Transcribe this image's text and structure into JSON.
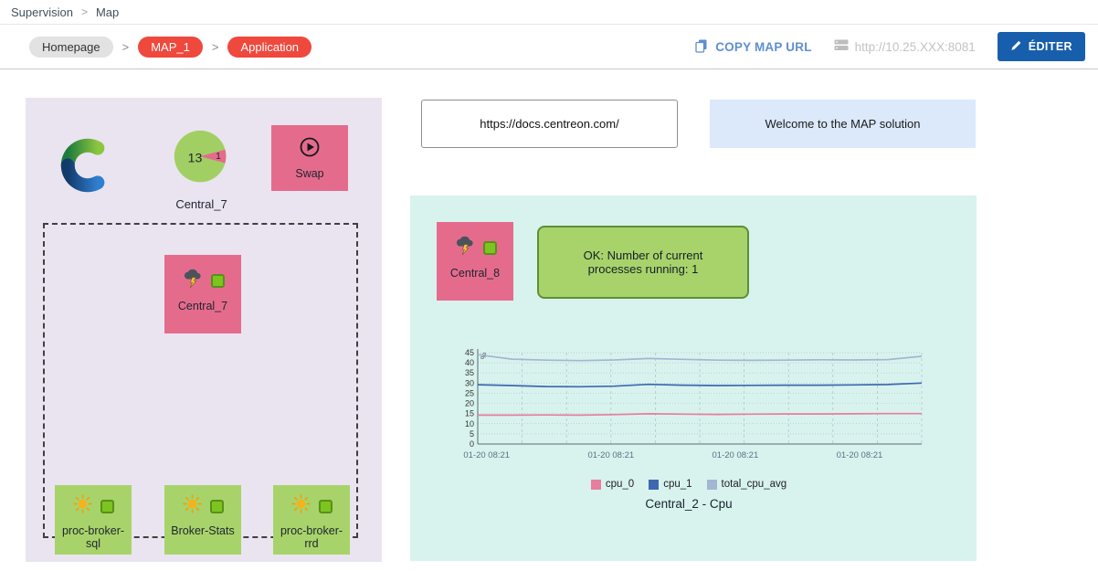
{
  "breadcrumb": {
    "section": "Supervision",
    "page": "Map"
  },
  "toolbar": {
    "homepage": "Homepage",
    "map_name": "MAP_1",
    "view_name": "Application",
    "copy_url_label": "COPY MAP URL",
    "server_url": "http://10.25.XXX:8081",
    "edit_label": "ÉDITER"
  },
  "left_panel": {
    "gauge": {
      "value": "13",
      "slice_value": "1",
      "label": "Central_7"
    },
    "swap": {
      "label": "Swap"
    },
    "host_box": {
      "label": "Central_7"
    },
    "service_boxes": [
      {
        "label": "proc-broker-sql"
      },
      {
        "label": "Broker-Stats"
      },
      {
        "label": "proc-broker-rrd"
      }
    ]
  },
  "info_boxes": {
    "docs_url": "https://docs.centreon.com/",
    "welcome": "Welcome to the MAP solution"
  },
  "right_panel": {
    "host_box": {
      "label": "Central_8"
    },
    "status_box": {
      "text": "OK: Number of current processes running: 1"
    }
  },
  "chart_data": {
    "type": "line",
    "title": "Central_2 - Cpu",
    "ylabel": "%",
    "xlabel": "",
    "ylim": [
      0,
      45
    ],
    "yticks": [
      0,
      5,
      10,
      15,
      20,
      25,
      30,
      35,
      40,
      45
    ],
    "x_tick_labels": [
      "01-20 08:21",
      "01-20 08:21",
      "01-20 08:21",
      "01-20 08:21"
    ],
    "grid": true,
    "legend_position": "bottom",
    "series": [
      {
        "name": "cpu_0",
        "color": "#e87d9d",
        "values": [
          14.2,
          14.2,
          14.3,
          14.2,
          14.5,
          14.9,
          14.7,
          14.6,
          14.7,
          14.8,
          14.8,
          14.9,
          15.0,
          15.0
        ]
      },
      {
        "name": "cpu_1",
        "color": "#3f67b1",
        "values": [
          29.2,
          28.8,
          28.3,
          28.2,
          28.5,
          29.4,
          29.0,
          28.8,
          28.9,
          29.0,
          29.0,
          29.1,
          29.3,
          30.0
        ]
      },
      {
        "name": "total_cpu_avg",
        "color": "#a3b6d2",
        "values": [
          44.0,
          41.8,
          41.3,
          41.1,
          41.4,
          42.1,
          41.7,
          41.3,
          41.2,
          41.3,
          41.5,
          41.4,
          41.6,
          43.2
        ]
      }
    ]
  },
  "icons": {
    "copy_map_url": "copy-icon",
    "server": "server-icon",
    "edit": "pencil-icon",
    "swap": "play-circle-icon",
    "host_warning": "storm-cloud-icon",
    "service_ok": "sun-icon",
    "status": "green-status-square",
    "logo": "centreon-logo"
  },
  "colors": {
    "pink": "#e56b8d",
    "node-green": "#a8d36a",
    "status-green": "#7dc41f",
    "status-border": "#57901a",
    "red-pill": "#ef483d",
    "blue-button": "#175fac",
    "link-blue": "#5e8fd0",
    "left-panel-bg": "#eae4f0",
    "right-panel-bg": "#d8f3ee",
    "welcome-bg": "#dbe9fb",
    "ok-border": "#5d8f35"
  }
}
